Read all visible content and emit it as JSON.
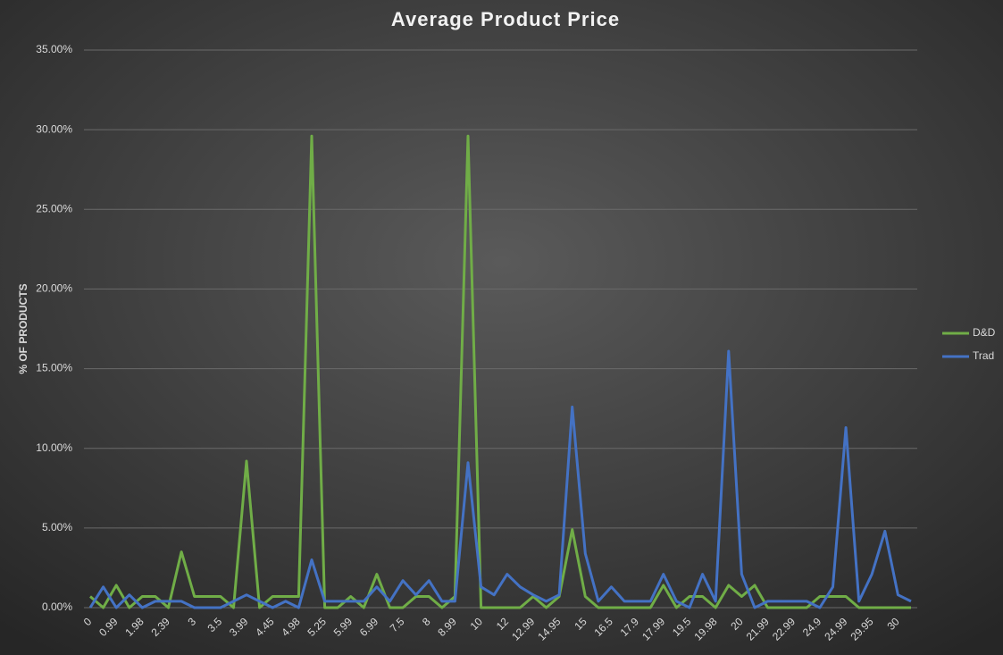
{
  "chart_data": {
    "type": "line",
    "title": "Average Product Price",
    "y_label": "% OF PRODUCTS",
    "categories": [
      "0",
      null,
      "0.99",
      null,
      "1.98",
      null,
      "2.39",
      null,
      "3",
      null,
      "3.5",
      null,
      "3.99",
      null,
      "4.45",
      null,
      "4.98",
      null,
      "5.25",
      null,
      "5.99",
      null,
      "6.99",
      null,
      "7.5",
      null,
      "8",
      null,
      "8.99",
      null,
      "10",
      null,
      "12",
      null,
      "12.99",
      null,
      "14.95",
      null,
      "15",
      null,
      "16.5",
      null,
      "17.9",
      null,
      "17.99",
      null,
      "19.5",
      null,
      "19.98",
      null,
      "20",
      null,
      "21.99",
      null,
      "22.99",
      null,
      "24.9",
      null,
      "24.99",
      null,
      "29.95",
      null,
      "30",
      null
    ],
    "series": [
      {
        "name": "D&D",
        "color": "#70ad47",
        "values": [
          0.7,
          0,
          1.4,
          0,
          0.7,
          0.7,
          0,
          3.5,
          0.7,
          0.7,
          0.7,
          0,
          9.2,
          0,
          0.7,
          0.7,
          0.7,
          29.6,
          0,
          0,
          0.7,
          0,
          2.1,
          0,
          0,
          0.7,
          0.7,
          0,
          0.7,
          29.6,
          0,
          0,
          0,
          0,
          0.7,
          0,
          0.7,
          4.9,
          0.7,
          0,
          0,
          0,
          0,
          0,
          1.4,
          0,
          0.7,
          0.7,
          0,
          1.4,
          0.7,
          1.4,
          0,
          0,
          0,
          0,
          0.7,
          0.7,
          0.7,
          0,
          0,
          0,
          0,
          0
        ]
      },
      {
        "name": "Trad",
        "color": "#4472c4",
        "values": [
          0,
          1.3,
          0,
          0.8,
          0,
          0.4,
          0.4,
          0.4,
          0,
          0,
          0,
          0.4,
          0.8,
          0.4,
          0,
          0.4,
          0,
          3.0,
          0.4,
          0.4,
          0.4,
          0.4,
          1.3,
          0.4,
          1.7,
          0.8,
          1.7,
          0.4,
          0.4,
          9.1,
          1.3,
          0.8,
          2.1,
          1.3,
          0.8,
          0.4,
          0.8,
          12.6,
          3.4,
          0.4,
          1.3,
          0.4,
          0.4,
          0.4,
          2.1,
          0.4,
          0,
          2.1,
          0.4,
          16.1,
          2.1,
          0,
          0.4,
          0.4,
          0.4,
          0.4,
          0,
          1.3,
          11.3,
          0.4,
          2.1,
          4.8,
          0.8,
          0.4
        ]
      }
    ],
    "ylim": [
      0,
      35
    ],
    "yticks": [
      {
        "value": 0,
        "label": "0.00%"
      },
      {
        "value": 5,
        "label": "5.00%"
      },
      {
        "value": 10,
        "label": "10.00%"
      },
      {
        "value": 15,
        "label": "15.00%"
      },
      {
        "value": 20,
        "label": "20.00%"
      },
      {
        "value": 25,
        "label": "25.00%"
      },
      {
        "value": 30,
        "label": "30.00%"
      },
      {
        "value": 35,
        "label": "35.00%"
      }
    ],
    "grid": true,
    "legend": "right"
  }
}
